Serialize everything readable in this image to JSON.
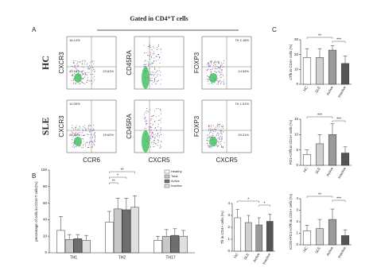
{
  "panel_labels": [
    "A",
    "B",
    "C"
  ],
  "flow": {
    "title": "Gated in CD4⁺T cells",
    "row_labels": [
      "HC",
      "SLE"
    ],
    "y_labels": [
      "CXCR3",
      "CD45RA",
      "FOXP3"
    ],
    "x_labels": [
      "CCR6",
      "CXCR5",
      "CXCR5"
    ],
    "gates": [
      [
        [
          "16.14%",
          "40.18%",
          "22.61%"
        ],
        [],
        [
          "Tfr 2.18%",
          "14.54%"
        ]
      ],
      [
        [
          "12.05%",
          "28.16%",
          "19.62%"
        ],
        [],
        [
          "Tfr 1.51%",
          "20.31%"
        ]
      ]
    ]
  },
  "chart_data": [
    {
      "type": "bar",
      "y_label": "percentage of cells in CD4+T cells(%)",
      "categories": [
        "TH1",
        "TH2",
        "TH17"
      ],
      "series": [
        {
          "name": "Healthy",
          "color": "#ffffff",
          "values": [
            27,
            37,
            15
          ],
          "errors": [
            17,
            13,
            5
          ]
        },
        {
          "name": "Total",
          "color": "#c8c8c8",
          "values": [
            16,
            53,
            20
          ],
          "errors": [
            6,
            13,
            8
          ]
        },
        {
          "name": "Active",
          "color": "#6e6e6e",
          "values": [
            17,
            52,
            21
          ],
          "errors": [
            5,
            14,
            8
          ]
        },
        {
          "name": "Inactive",
          "color": "#e0e0e0",
          "values": [
            15,
            55,
            20
          ],
          "errors": [
            6,
            14,
            7
          ]
        }
      ],
      "ylim": [
        0,
        100
      ],
      "yticks": [
        0,
        20,
        40,
        60,
        80,
        100
      ],
      "annotations": [
        "**",
        "*",
        "**"
      ]
    },
    {
      "type": "bar",
      "y_label": "Tfr in CD4+ cells (%)",
      "categories": [
        "HC",
        "SLE",
        "Active",
        "Inactive"
      ],
      "values": [
        2.8,
        2.4,
        2.2,
        2.5
      ],
      "errors": [
        0.7,
        0.6,
        0.6,
        0.6
      ],
      "colors": [
        "#ffffff",
        "#d0d0d0",
        "#9a9a9a",
        "#555555"
      ],
      "ylim": [
        0,
        4
      ],
      "yticks": [
        0,
        1,
        2,
        3,
        4
      ],
      "annotations": [
        "*",
        "*"
      ]
    },
    {
      "type": "bar",
      "y_label": "cTfh in CD4+ cells (%)",
      "categories": [
        "HC",
        "SLE",
        "Active",
        "Inactive"
      ],
      "values": [
        18,
        18,
        23,
        14
      ],
      "errors": [
        6,
        6,
        3,
        5
      ],
      "colors": [
        "#ffffff",
        "#d0d0d0",
        "#9a9a9a",
        "#555555"
      ],
      "ylim": [
        0,
        30
      ],
      "yticks": [
        0,
        10,
        20,
        30
      ],
      "annotations": [
        "**",
        "***"
      ]
    },
    {
      "type": "bar",
      "y_label": "PD1+cTfh in CD4+ cells (%)",
      "categories": [
        "HC",
        "SLE",
        "Active",
        "Inactive"
      ],
      "values": [
        3.5,
        7,
        10,
        4
      ],
      "errors": [
        1.5,
        3,
        3.5,
        2
      ],
      "colors": [
        "#ffffff",
        "#d0d0d0",
        "#9a9a9a",
        "#555555"
      ],
      "ylim": [
        0,
        15
      ],
      "yticks": [
        0,
        5,
        10,
        15
      ],
      "annotations": [
        "***",
        "***"
      ]
    },
    {
      "type": "bar",
      "y_label": "ICOS+PD1+cTfh in CD4+ cells (%)",
      "categories": [
        "HC",
        "SLE",
        "Active",
        "Inactive"
      ],
      "values": [
        1.2,
        1.4,
        2.2,
        0.8
      ],
      "errors": [
        0.5,
        0.8,
        0.9,
        0.5
      ],
      "colors": [
        "#ffffff",
        "#d0d0d0",
        "#9a9a9a",
        "#555555"
      ],
      "ylim": [
        0,
        4
      ],
      "yticks": [
        0,
        1,
        2,
        3,
        4
      ],
      "annotations": [
        "**",
        "***"
      ]
    }
  ]
}
